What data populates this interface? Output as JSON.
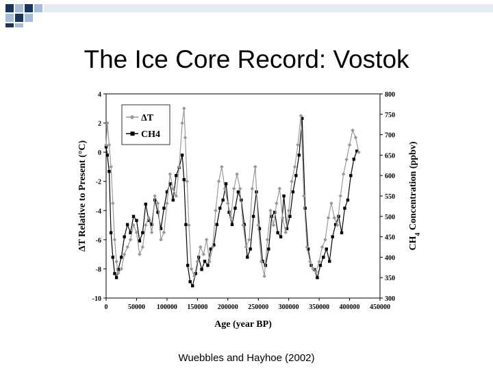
{
  "slide": {
    "title": "The Ice Core Record: Vostok",
    "credit": "Wuebbles and Hayhoe (2002)",
    "square_colors": [
      "#17375e",
      "#a6bcd9"
    ]
  },
  "chart_data": {
    "type": "line",
    "title": "",
    "xlabel": "Age (year BP)",
    "ylabel_left": "ΔT Relative to Present (°C)",
    "ylabel_right": "CH4 Concentration (ppbv)",
    "xlim": [
      0,
      450000
    ],
    "ylim_left": [
      -10,
      4
    ],
    "ylim_right": [
      300,
      800
    ],
    "x_ticks": [
      "0",
      "50000",
      "100000",
      "150000",
      "200000",
      "250000",
      "300000",
      "350000",
      "400000",
      "450000"
    ],
    "y_left_ticks": [
      "4",
      "2",
      "0",
      "-2",
      "-4",
      "-6",
      "-8",
      "-10"
    ],
    "y_right_ticks": [
      "800",
      "750",
      "700",
      "650",
      "600",
      "550",
      "500",
      "450",
      "400",
      "350",
      "300"
    ],
    "legend": [
      "ΔT",
      "CH4"
    ],
    "legend_position": "top-left",
    "series": [
      {
        "name": "ΔT",
        "color": "#999999",
        "marker": "diamond",
        "axis": "left",
        "x": [
          0,
          2000,
          5000,
          8000,
          11000,
          14000,
          17000,
          20000,
          25000,
          30000,
          35000,
          40000,
          45000,
          50000,
          55000,
          60000,
          65000,
          70000,
          75000,
          80000,
          85000,
          90000,
          95000,
          100000,
          105000,
          110000,
          115000,
          120000,
          125000,
          128000,
          130000,
          133000,
          136000,
          140000,
          145000,
          150000,
          155000,
          160000,
          165000,
          170000,
          175000,
          180000,
          185000,
          190000,
          195000,
          200000,
          205000,
          210000,
          215000,
          220000,
          225000,
          230000,
          235000,
          240000,
          245000,
          250000,
          255000,
          260000,
          265000,
          270000,
          275000,
          280000,
          285000,
          290000,
          295000,
          300000,
          305000,
          310000,
          315000,
          320000,
          325000,
          330000,
          335000,
          340000,
          345000,
          350000,
          355000,
          360000,
          365000,
          370000,
          375000,
          380000,
          385000,
          390000,
          395000,
          400000,
          405000,
          410000,
          415000
        ],
        "values": [
          0.5,
          2.0,
          0.5,
          -1.0,
          -3.5,
          -6.0,
          -7.5,
          -8.3,
          -8.0,
          -7.0,
          -6.5,
          -6.0,
          -5.0,
          -5.5,
          -7.0,
          -6.5,
          -5.0,
          -4.5,
          -5.5,
          -3.0,
          -3.5,
          -6.0,
          -5.5,
          -3.5,
          -1.5,
          -2.5,
          -3.0,
          -1.0,
          2.0,
          3.0,
          1.0,
          -2.0,
          -5.0,
          -8.0,
          -8.5,
          -7.5,
          -6.5,
          -7.0,
          -6.0,
          -7.5,
          -6.5,
          -4.0,
          -2.0,
          -1.0,
          -2.5,
          -3.5,
          -4.5,
          -2.5,
          -1.5,
          -2.5,
          -5.0,
          -6.5,
          -6.0,
          -2.5,
          -1.0,
          -5.0,
          -7.5,
          -8.5,
          -6.0,
          -4.0,
          -5.0,
          -3.5,
          -2.5,
          -4.5,
          -5.5,
          -4.0,
          -2.0,
          -1.0,
          0.5,
          2.5,
          -3.0,
          -6.5,
          -7.5,
          -8.0,
          -8.2,
          -7.5,
          -6.5,
          -6.0,
          -4.5,
          -3.5,
          -4.5,
          -5.0,
          -3.0,
          -1.5,
          -0.5,
          0.5,
          1.5,
          1.0,
          0.0
        ]
      },
      {
        "name": "CH4",
        "color": "#000000",
        "marker": "square",
        "axis": "right",
        "x": [
          0,
          2000,
          5000,
          8000,
          11000,
          14000,
          17000,
          20000,
          25000,
          30000,
          35000,
          40000,
          45000,
          50000,
          55000,
          60000,
          65000,
          70000,
          75000,
          80000,
          85000,
          90000,
          95000,
          100000,
          105000,
          110000,
          115000,
          120000,
          125000,
          128000,
          131000,
          134000,
          138000,
          142000,
          147000,
          152000,
          157000,
          162000,
          167000,
          172000,
          177000,
          182000,
          187000,
          192000,
          197000,
          202000,
          207000,
          212000,
          217000,
          222000,
          227000,
          232000,
          237000,
          242000,
          247000,
          252000,
          257000,
          262000,
          267000,
          272000,
          277000,
          282000,
          287000,
          292000,
          297000,
          302000,
          307000,
          312000,
          317000,
          322000,
          327000,
          332000,
          337000,
          342000,
          347000,
          352000,
          357000,
          362000,
          367000,
          372000,
          377000,
          382000,
          387000,
          392000,
          397000,
          402000,
          407000,
          412000
        ],
        "values": [
          670,
          650,
          610,
          460,
          400,
          360,
          350,
          370,
          400,
          450,
          480,
          460,
          500,
          490,
          440,
          460,
          530,
          490,
          480,
          540,
          510,
          470,
          520,
          560,
          580,
          540,
          600,
          620,
          650,
          590,
          480,
          380,
          340,
          330,
          360,
          400,
          370,
          390,
          380,
          420,
          430,
          480,
          520,
          540,
          580,
          510,
          480,
          520,
          560,
          540,
          480,
          400,
          420,
          500,
          560,
          470,
          390,
          380,
          420,
          500,
          510,
          460,
          450,
          550,
          470,
          500,
          560,
          600,
          650,
          740,
          520,
          420,
          380,
          370,
          350,
          380,
          400,
          420,
          390,
          450,
          480,
          500,
          460,
          520,
          540,
          600,
          640,
          660
        ]
      }
    ]
  }
}
